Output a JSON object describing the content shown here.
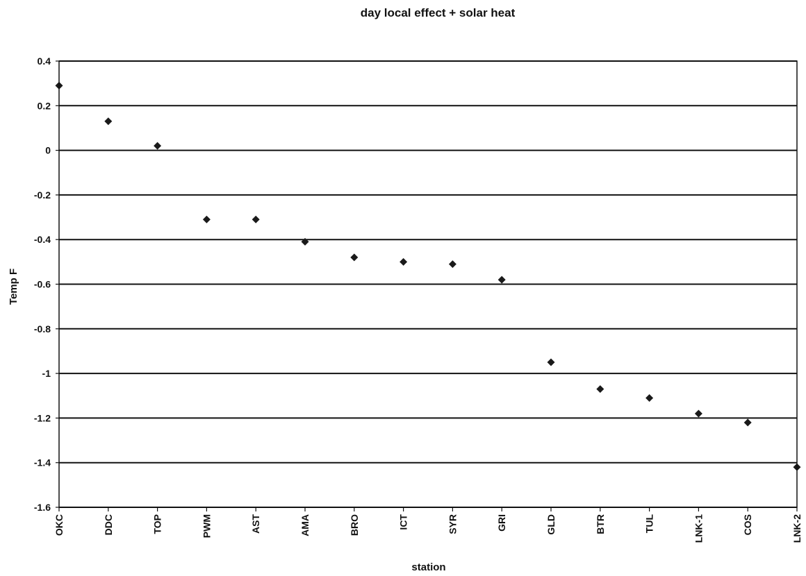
{
  "chart_data": {
    "type": "scatter",
    "title": "day local effect + solar heat",
    "xlabel": "station",
    "ylabel": "Temp F",
    "categories": [
      "OKC",
      "DDC",
      "TOP",
      "PWM",
      "AST",
      "AMA",
      "BRO",
      "ICT",
      "SYR",
      "GRI",
      "GLD",
      "BTR",
      "TUL",
      "LNK-1",
      "COS",
      "LNK-2"
    ],
    "series": [
      {
        "values": [
          0.29,
          0.13,
          0.02,
          -0.31,
          -0.31,
          -0.41,
          -0.48,
          -0.5,
          -0.51,
          -0.58,
          -0.95,
          -1.07,
          -1.11,
          -1.18,
          -1.22,
          -1.42
        ]
      }
    ],
    "ylim": [
      -1.6,
      0.4
    ],
    "yticks": [
      "0.4",
      "0.2",
      "0",
      "-0.2",
      "-0.4",
      "-0.6",
      "-0.8",
      "-1",
      "-1.2",
      "-1.4",
      "-1.6"
    ],
    "ytick_values": [
      0.4,
      0.2,
      0,
      -0.2,
      -0.4,
      -0.6,
      -0.8,
      -1,
      -1.2,
      -1.4,
      -1.6
    ],
    "grid": true,
    "marker": "diamond",
    "colors": {
      "marker": "#1a1a1a",
      "grid": "#111111"
    }
  }
}
